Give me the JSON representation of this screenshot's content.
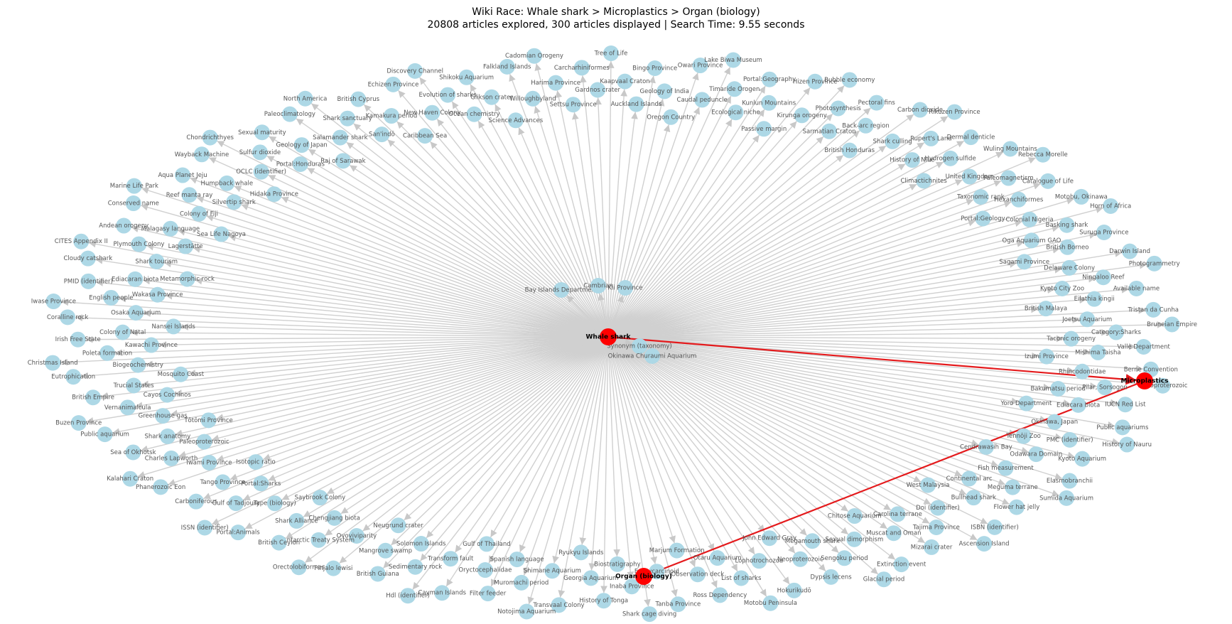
{
  "header": {
    "title": "Wiki Race: Whale shark > Microplastics > Organ (biology)",
    "subtitle": "20808 articles explored, 300 articles displayed | Search Time: 9.55 seconds"
  },
  "path_nodes": [
    "Whale shark",
    "Microplastics",
    "Organ (biology)"
  ],
  "center_nodes": [
    "Bay Islands Department",
    "Cambrian",
    "Kii Province",
    "Synonym (taxonomy)",
    "Okinawa Churaumi Aquarium"
  ],
  "nodes": [
    "Tree of Life",
    "Kaapvaal Craton",
    "Auckland Islands",
    "Bingo Province",
    "Geology of India",
    "Oregon Country",
    "Owari Province",
    "Caudal peduncle",
    "Lake Biwa Museum",
    "Timaride Orogen",
    "Ecological niche",
    "Portal:Geography",
    "Kunlun Mountains",
    "Passive margin",
    "Hizen Province",
    "Kirunga orogeny",
    "Bubble economy",
    "Photosynthesis",
    "Sarmatian Craton",
    "Pectoral fins",
    "Back-arc region",
    "British Honduras",
    "Carbon dioxide",
    "Shark culling",
    "Rikuzen Province",
    "Rupert's Land",
    "History of Niue",
    "Dermal denticle",
    "Hydrogen sulfide",
    "Climactichnites",
    "Wuling Mountains",
    "United Kingdom",
    "Rebecca Morelle",
    "Paleomagnetism",
    "Taxonomic rank",
    "Catalogue of Life",
    "Hexanchiformes",
    "Portal:Geology",
    "Motobu, Okinawa",
    "Colonial Nigeria",
    "Horn of Africa",
    "Basking shark",
    "Oga Aquarium GAO",
    "Suruga Province",
    "British Borneo",
    "Sagami Province",
    "Darwin Island",
    "Delaware Colony",
    "Photogrammetry",
    "Ningaloo Reef",
    "Kyoto City Zoo",
    "Available name",
    "Eilathia kingii",
    "British Malaya",
    "Tristan da Cunha",
    "Joetsu Aquarium",
    "Bruneian Empire",
    "Category:Sharks",
    "Taconic orogeny",
    "Valle Department",
    "Mishima Taisha",
    "Izumi Province",
    "Berne Convention",
    "Rhincodontidae",
    "Mesoproterozoic",
    "Pilar, Sorsogon",
    "Bakumatsu period",
    "IUCN Red List",
    "Ediacara biota",
    "Yoro Department",
    "Public aquariums",
    "Okinawa, Japan",
    "History of Nauru",
    "PMC (identifier)",
    "Tennōji Zoo",
    "Kyoto Aquarium",
    "Odawara Domain",
    "Cendrawasih Bay",
    "Elasmobranchii",
    "Fish measurement",
    "Sumida Aquarium",
    "Meguma terrane",
    "Continental arc",
    "Flower hat jelly",
    "Bullhead shark",
    "West Malaysia",
    "ISBN (identifier)",
    "Doi (identifier)",
    "Ascension Island",
    "Tajima Province",
    "Carolina terrane",
    "Mizarai crater",
    "Muscat and Oman",
    "Chitose Aquarium",
    "Extinction event",
    "Sexual dimorphism",
    "Glacial period",
    "Sengoku period",
    "Megamouth shark",
    "Dypsis lecens",
    "Neoproterozoic",
    "John Edward Gray",
    "Hokurikudō",
    "Lophotrochozoa",
    "Motobu Peninsula",
    "List of sharks",
    "Otaru Aquarium",
    "Ross Dependency",
    "Observation deck",
    "Marjum Formation",
    "Tanba Province",
    "Euthycarcinoid",
    "Shark cage diving",
    "Inaba Province",
    "Biostratigraphy",
    "History of Tonga",
    "Georgia Aquarium",
    "Ryukyu Islands",
    "Transvaal Colony",
    "Shimane Aquarium",
    "Notojima Aquarium",
    "Muromachi period",
    "Spanish language",
    "Filter feeder",
    "Oryctocephalidae",
    "Gulf of Thailand",
    "Cayman Islands",
    "Transform fault",
    "Hdl (identifier)",
    "Sedimentary rock",
    "Solomon Islands",
    "British Guiana",
    "Mangrove swamp",
    "Neugrund crater",
    "Pinjalo lewisi",
    "Ovoviviparity",
    "Orectolobiformes",
    "Antarctic Treaty System",
    "Chengjiang biota",
    "British Ceylon",
    "Shark Alliance",
    "Saybrook Colony",
    "Portal:Animals",
    "Type (biology)",
    "ISSN (identifier)",
    "Gulf of Tadjoura",
    "Portal:Sharks",
    "Carboniferous",
    "Tango Province",
    "Isotopic ratio",
    "Phanerozoic Eon",
    "Iwami Province",
    "Kalahari Craton",
    "Charles Lapworth",
    "Paleoproterozoic",
    "Sea of Okhotsk",
    "Shark anatomy",
    "Tōtōmi Province",
    "Public aquarium",
    "Greenhouse gas",
    "Buzen Province",
    "Vernanimalcula",
    "Cayos Cochinos",
    "British Empire",
    "Trucial States",
    "Mosquito Coast",
    "Eutrophication",
    "Biogeochemistry",
    "Christmas Island",
    "Poleta formation",
    "Kawachi Province",
    "Irish Free State",
    "Colony of Natal",
    "Nansei Islands",
    "Coralline rock",
    "Osaka Aquarium",
    "Iwase Province",
    "English people",
    "Wakasa Province",
    "PMID (identifier)",
    "Ediacaran biota",
    "Metamorphic rock",
    "Cloudy catshark",
    "Shark tourism",
    "CITES Appendix II",
    "Plymouth Colony",
    "Lagerstätte",
    "Andean orogeny",
    "Malagasy language",
    "Sea Life Nagoya",
    "Conserved name",
    "Colony of Fiji",
    "Marine Life Park",
    "Reef manta ray",
    "Silvertip shark",
    "Aqua Planet Jeju",
    "Humpback whale",
    "Hidaka Province",
    "Wayback Machine",
    "OCLC (identifier)",
    "Chondrichthyes",
    "Sulfur dioxide",
    "Portal:Honduras",
    "Sexual maturity",
    "Geology of Japan",
    "Raj of Sarawak",
    "Paleoclimatology",
    "Salamander shark",
    "North America",
    "Shark sanctuary",
    "San'indō",
    "British Cyprus",
    "Kamakura period",
    "Caribbean Sea",
    "Echizen Province",
    "New Haven Colony",
    "Discovery Channel",
    "Evolution of sharks",
    "Ocean chemistry",
    "Shikoku Aquarium",
    "Glikson crater",
    "Science Advances",
    "Falkland Islands",
    "Willoughbyland",
    "Cadomian Orogeny",
    "Harima Province",
    "Settsu Province",
    "Carcharhiniformes",
    "Gardnos crater"
  ]
}
